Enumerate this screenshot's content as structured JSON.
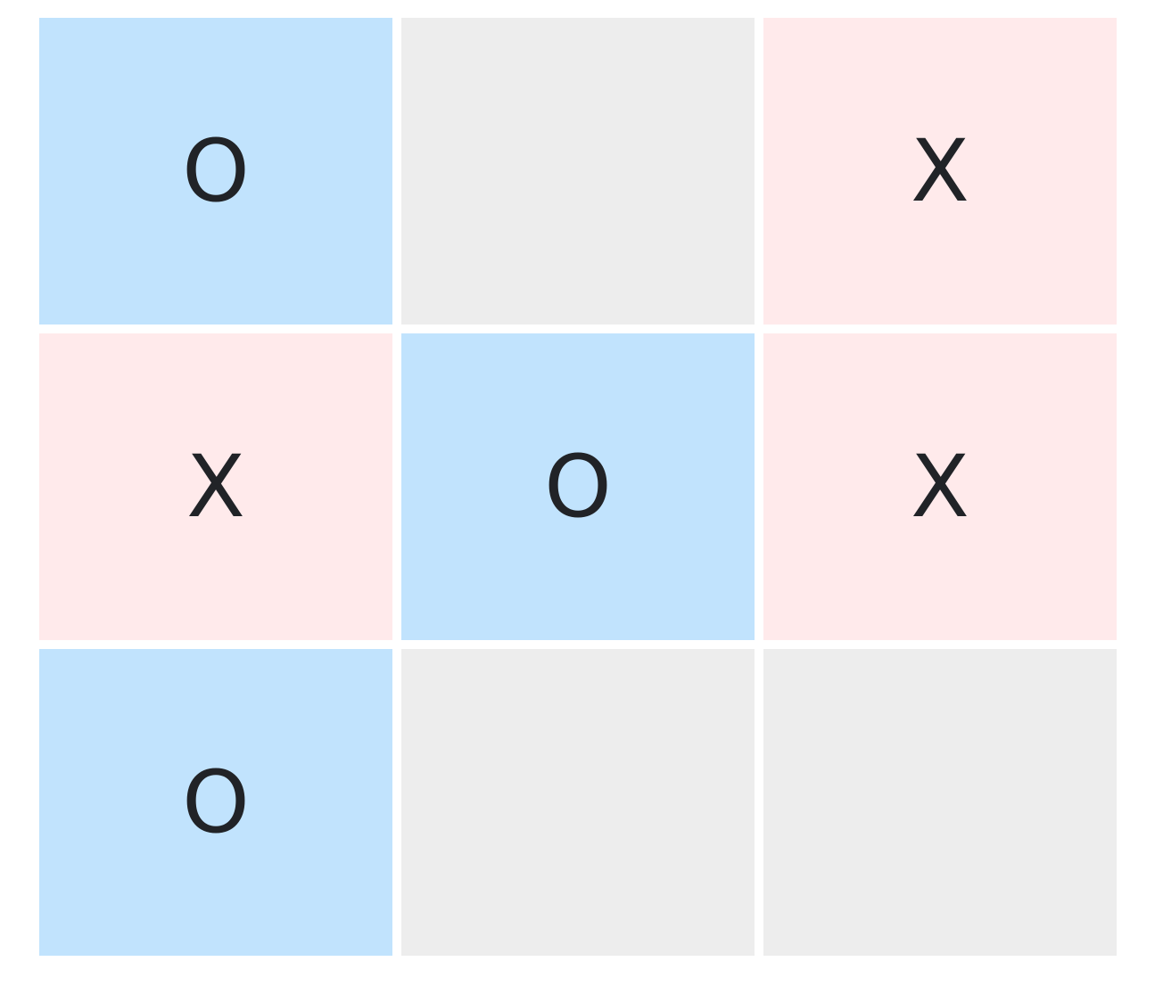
{
  "board": {
    "cells": [
      {
        "row": 1,
        "col": 1,
        "mark": "O"
      },
      {
        "row": 1,
        "col": 2,
        "mark": ""
      },
      {
        "row": 1,
        "col": 3,
        "mark": "X"
      },
      {
        "row": 2,
        "col": 1,
        "mark": "X"
      },
      {
        "row": 2,
        "col": 2,
        "mark": "O"
      },
      {
        "row": 2,
        "col": 3,
        "mark": "X"
      },
      {
        "row": 3,
        "col": 1,
        "mark": "O"
      },
      {
        "row": 3,
        "col": 2,
        "mark": ""
      },
      {
        "row": 3,
        "col": 3,
        "mark": ""
      }
    ]
  },
  "colors": {
    "o_cell": "#c1e3fd",
    "x_cell": "#ffeaeb",
    "empty_cell": "#ededed",
    "mark_text": "#212327"
  }
}
